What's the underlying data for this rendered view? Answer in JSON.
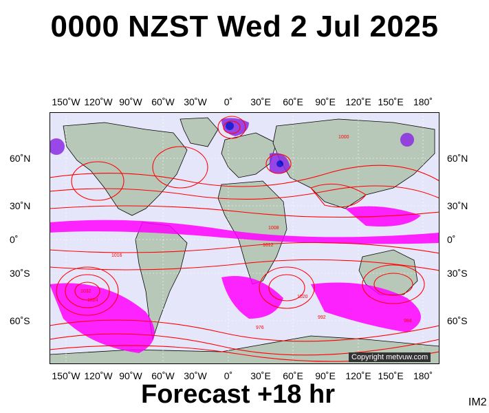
{
  "title": "0000 NZST Wed 2 Jul 2025",
  "forecast_label": "Forecast +18 hr",
  "image_code": "IM2",
  "copyright": "Copyright metvuw.com",
  "lon_labels": [
    "150˚W",
    "120˚W",
    "90˚W",
    "60˚W",
    "30˚W",
    "0˚",
    "30˚E",
    "60˚E",
    "90˚E",
    "120˚E",
    "150˚E",
    "180˚"
  ],
  "lat_labels": [
    "60˚N",
    "30˚N",
    "0˚",
    "30˚S",
    "60˚S"
  ],
  "pressure_labels": [
    "1016",
    "1024",
    "1032",
    "1008",
    "1000",
    "1012",
    "992",
    "984",
    "976",
    "1020"
  ],
  "colors": {
    "ocean": "#e6e6fa",
    "land": "#b8c8b8",
    "isobar": "#ff0000",
    "rain_light": "#ff00ff",
    "rain_medium": "#8a2be2",
    "rain_heavy": "#0000cd"
  }
}
